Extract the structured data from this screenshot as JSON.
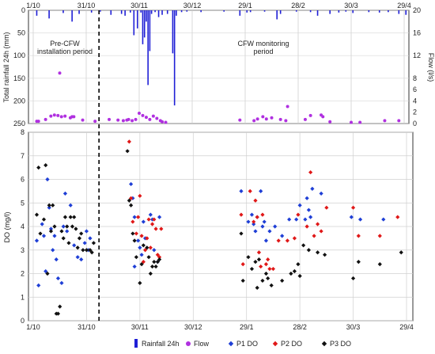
{
  "chart_data": [
    {
      "type": "bar+scatter",
      "panel": "top",
      "x_tick_labels": [
        "1/10",
        "31/10",
        "30/11",
        "30/12",
        "29/1",
        "28/2",
        "30/3",
        "29/4"
      ],
      "xlabel": "",
      "ylabel_left": "Total rainfall 24h (mm)",
      "ylabel_right": "Flow (l/s)",
      "yticks_left": [
        0,
        50,
        100,
        150,
        200,
        250
      ],
      "yticks_right": [
        0,
        2,
        4,
        6,
        8,
        12,
        16,
        20
      ],
      "ylim_left": [
        0,
        250
      ],
      "left_axis_inverted": true,
      "ylim_right": [
        0,
        20
      ],
      "colors": {
        "rainfall": "#1f1fd6",
        "flow": "#b030e0"
      },
      "annotations": [
        "Pre-CFW installation period",
        "CFW monitoring period"
      ],
      "rainfall": [
        {
          "day": 2,
          "mm": 12
        },
        {
          "day": 9,
          "mm": 18
        },
        {
          "day": 17,
          "mm": 6
        },
        {
          "day": 22,
          "mm": 25
        },
        {
          "day": 26,
          "mm": 8
        },
        {
          "day": 33,
          "mm": 5
        },
        {
          "day": 38,
          "mm": 3
        },
        {
          "day": 44,
          "mm": 10
        },
        {
          "day": 50,
          "mm": 8
        },
        {
          "day": 52,
          "mm": 12
        },
        {
          "day": 55,
          "mm": 5
        },
        {
          "day": 57,
          "mm": 55
        },
        {
          "day": 59,
          "mm": 40
        },
        {
          "day": 61,
          "mm": 5
        },
        {
          "day": 62,
          "mm": 75
        },
        {
          "day": 63,
          "mm": 60
        },
        {
          "day": 64,
          "mm": 25
        },
        {
          "day": 65,
          "mm": 165
        },
        {
          "day": 66,
          "mm": 90
        },
        {
          "day": 67,
          "mm": 8
        },
        {
          "day": 69,
          "mm": 4
        },
        {
          "day": 71,
          "mm": 15
        },
        {
          "day": 73,
          "mm": 10
        },
        {
          "day": 76,
          "mm": 8
        },
        {
          "day": 79,
          "mm": 95
        },
        {
          "day": 80,
          "mm": 210
        },
        {
          "day": 81,
          "mm": 12
        },
        {
          "day": 84,
          "mm": 4
        },
        {
          "day": 87,
          "mm": 3
        },
        {
          "day": 95,
          "mm": 4
        },
        {
          "day": 108,
          "mm": 3
        },
        {
          "day": 117,
          "mm": 12
        },
        {
          "day": 121,
          "mm": 5
        },
        {
          "day": 123,
          "mm": 4
        },
        {
          "day": 131,
          "mm": 3
        },
        {
          "day": 138,
          "mm": 20
        },
        {
          "day": 140,
          "mm": 8
        },
        {
          "day": 149,
          "mm": 3
        },
        {
          "day": 157,
          "mm": 4
        },
        {
          "day": 161,
          "mm": 12
        },
        {
          "day": 168,
          "mm": 8
        },
        {
          "day": 173,
          "mm": 5
        },
        {
          "day": 177,
          "mm": 3
        },
        {
          "day": 181,
          "mm": 6
        },
        {
          "day": 190,
          "mm": 4
        },
        {
          "day": 196,
          "mm": 5
        },
        {
          "day": 201,
          "mm": 4
        },
        {
          "day": 207,
          "mm": 8
        },
        {
          "day": 211,
          "mm": 10
        }
      ],
      "flow": [
        {
          "day": 2,
          "ls": 0.2
        },
        {
          "day": 3,
          "ls": 0.2
        },
        {
          "day": 7,
          "ls": 0.5
        },
        {
          "day": 10,
          "ls": 1.1
        },
        {
          "day": 12,
          "ls": 1.3
        },
        {
          "day": 14,
          "ls": 1.2
        },
        {
          "day": 15,
          "ls": 8.7
        },
        {
          "day": 16,
          "ls": 1.0
        },
        {
          "day": 18,
          "ls": 1.1
        },
        {
          "day": 21,
          "ls": 0.8
        },
        {
          "day": 22,
          "ls": 1.0
        },
        {
          "day": 23,
          "ls": 1.0
        },
        {
          "day": 28,
          "ls": 0.4
        },
        {
          "day": 35,
          "ls": 0.2
        },
        {
          "day": 43,
          "ls": 0.5
        },
        {
          "day": 48,
          "ls": 0.4
        },
        {
          "day": 51,
          "ls": 0.3
        },
        {
          "day": 53,
          "ls": 0.4
        },
        {
          "day": 54,
          "ls": 0.5
        },
        {
          "day": 56,
          "ls": 0.3
        },
        {
          "day": 58,
          "ls": 0.5
        },
        {
          "day": 60,
          "ls": 1.6
        },
        {
          "day": 62,
          "ls": 1.2
        },
        {
          "day": 64,
          "ls": 0.9
        },
        {
          "day": 66,
          "ls": 0.5
        },
        {
          "day": 68,
          "ls": 1.1
        },
        {
          "day": 70,
          "ls": 0.7
        },
        {
          "day": 72,
          "ls": 0.3
        },
        {
          "day": 73,
          "ls": 0.1
        },
        {
          "day": 75,
          "ls": 0.0
        },
        {
          "day": 117,
          "ls": 0.4
        },
        {
          "day": 125,
          "ls": 0.3
        },
        {
          "day": 127,
          "ls": 0.6
        },
        {
          "day": 130,
          "ls": 1.0
        },
        {
          "day": 132,
          "ls": 0.6
        },
        {
          "day": 135,
          "ls": 0.8
        },
        {
          "day": 140,
          "ls": 0.5
        },
        {
          "day": 143,
          "ls": 0.3
        },
        {
          "day": 144,
          "ls": 2.8
        },
        {
          "day": 154,
          "ls": 0.5
        },
        {
          "day": 157,
          "ls": 1.2
        },
        {
          "day": 163,
          "ls": 1.3
        },
        {
          "day": 164,
          "ls": 1.0
        },
        {
          "day": 168,
          "ls": 0.1
        },
        {
          "day": 180,
          "ls": 0.0
        },
        {
          "day": 185,
          "ls": 0.0
        },
        {
          "day": 199,
          "ls": 0.3
        },
        {
          "day": 207,
          "ls": 0.3
        }
      ]
    },
    {
      "type": "scatter",
      "panel": "bottom",
      "x_tick_labels": [
        "1/10",
        "31/10",
        "30/11",
        "30/12",
        "29/1",
        "28/2",
        "30/3",
        "29/4"
      ],
      "ylabel": "DO (mg/l)",
      "yticks": [
        0,
        1,
        2,
        3,
        4,
        5,
        6,
        7,
        8
      ],
      "ylim": [
        0,
        8
      ],
      "series": [
        {
          "name": "P1 DO",
          "color": "#1f3fd6",
          "points": [
            [
              2,
              3.4
            ],
            [
              3,
              1.5
            ],
            [
              5,
              4.1
            ],
            [
              6,
              3.6
            ],
            [
              7,
              2.1
            ],
            [
              8,
              6.0
            ],
            [
              9,
              4.8
            ],
            [
              10,
              3.9
            ],
            [
              11,
              3.0
            ],
            [
              12,
              3.6
            ],
            [
              13,
              2.6
            ],
            [
              14,
              1.8
            ],
            [
              16,
              1.6
            ],
            [
              17,
              4.0
            ],
            [
              18,
              5.4
            ],
            [
              19,
              3.8
            ],
            [
              21,
              4.9
            ],
            [
              23,
              3.2
            ],
            [
              25,
              2.7
            ],
            [
              27,
              2.6
            ],
            [
              29,
              3.3
            ],
            [
              30,
              3.8
            ],
            [
              31,
              3.0
            ],
            [
              32,
              3.5
            ],
            [
              55,
              5.8
            ],
            [
              56,
              5.2
            ],
            [
              57,
              2.3
            ],
            [
              57,
              4.4
            ],
            [
              59,
              3.4
            ],
            [
              60,
              3.1
            ],
            [
              61,
              2.8
            ],
            [
              62,
              4.2
            ],
            [
              63,
              3.5
            ],
            [
              66,
              4.5
            ],
            [
              67,
              4.3
            ],
            [
              68,
              3.0
            ],
            [
              70,
              2.5
            ],
            [
              71,
              4.4
            ],
            [
              117,
              5.5
            ],
            [
              121,
              4.2
            ],
            [
              123,
              4.5
            ],
            [
              124,
              4.1
            ],
            [
              125,
              3.8
            ],
            [
              126,
              4.4
            ],
            [
              128,
              5.5
            ],
            [
              129,
              4.0
            ],
            [
              130,
              4.2
            ],
            [
              131,
              3.4
            ],
            [
              133,
              3.8
            ],
            [
              136,
              4.0
            ],
            [
              140,
              3.6
            ],
            [
              144,
              4.3
            ],
            [
              148,
              4.3
            ],
            [
              150,
              4.9
            ],
            [
              153,
              4.3
            ],
            [
              154,
              5.2
            ],
            [
              155,
              4.7
            ],
            [
              156,
              4.4
            ],
            [
              157,
              5.6
            ],
            [
              162,
              5.4
            ],
            [
              179,
              4.4
            ],
            [
              184,
              4.3
            ],
            [
              197,
              4.3
            ]
          ]
        },
        {
          "name": "P2 DO",
          "color": "#e01818",
          "points": [
            [
              54,
              7.6
            ],
            [
              55,
              5.2
            ],
            [
              56,
              4.2
            ],
            [
              58,
              3.7
            ],
            [
              59,
              4.4
            ],
            [
              60,
              5.3
            ],
            [
              61,
              3.6
            ],
            [
              62,
              2.5
            ],
            [
              63,
              3.0
            ],
            [
              64,
              3.5
            ],
            [
              65,
              4.3
            ],
            [
              66,
              3.1
            ],
            [
              67,
              4.1
            ],
            [
              68,
              4.3
            ],
            [
              69,
              3.9
            ],
            [
              70,
              2.8
            ],
            [
              71,
              2.7
            ],
            [
              72,
              3.9
            ],
            [
              117,
              4.5
            ],
            [
              118,
              2.4
            ],
            [
              122,
              5.5
            ],
            [
              124,
              4.2
            ],
            [
              125,
              5.1
            ],
            [
              126,
              4.4
            ],
            [
              127,
              2.9
            ],
            [
              128,
              2.3
            ],
            [
              129,
              4.5
            ],
            [
              131,
              2.4
            ],
            [
              132,
              2.6
            ],
            [
              133,
              2.2
            ],
            [
              135,
              2.2
            ],
            [
              138,
              3.4
            ],
            [
              143,
              3.4
            ],
            [
              147,
              3.5
            ],
            [
              149,
              4.5
            ],
            [
              154,
              4.0
            ],
            [
              156,
              6.3
            ],
            [
              158,
              3.6
            ],
            [
              160,
              4.1
            ],
            [
              162,
              3.8
            ],
            [
              165,
              4.8
            ],
            [
              180,
              4.8
            ],
            [
              183,
              3.6
            ],
            [
              195,
              3.6
            ],
            [
              205,
              4.4
            ]
          ]
        },
        {
          "name": "P3 DO",
          "color": "#111111",
          "points": [
            [
              2,
              4.5
            ],
            [
              3,
              6.5
            ],
            [
              4,
              3.7
            ],
            [
              6,
              4.3
            ],
            [
              7,
              6.6
            ],
            [
              8,
              2.0
            ],
            [
              9,
              4.9
            ],
            [
              10,
              3.8
            ],
            [
              11,
              4.9
            ],
            [
              12,
              4.0
            ],
            [
              13,
              0.3
            ],
            [
              14,
              0.3
            ],
            [
              15,
              0.6
            ],
            [
              16,
              3.8
            ],
            [
              17,
              3.5
            ],
            [
              18,
              4.4
            ],
            [
              19,
              4.0
            ],
            [
              20,
              3.3
            ],
            [
              21,
              4.4
            ],
            [
              22,
              4.0
            ],
            [
              23,
              4.4
            ],
            [
              24,
              3.9
            ],
            [
              25,
              3.1
            ],
            [
              26,
              3.5
            ],
            [
              27,
              3.7
            ],
            [
              28,
              3.0
            ],
            [
              30,
              3.0
            ],
            [
              32,
              3.0
            ],
            [
              33,
              2.9
            ],
            [
              34,
              3.3
            ],
            [
              53,
              7.2
            ],
            [
              54,
              5.1
            ],
            [
              55,
              4.9
            ],
            [
              56,
              3.7
            ],
            [
              57,
              3.4
            ],
            [
              58,
              2.7
            ],
            [
              60,
              1.6
            ],
            [
              61,
              2.4
            ],
            [
              62,
              3.2
            ],
            [
              64,
              3.1
            ],
            [
              65,
              2.7
            ],
            [
              66,
              2.0
            ],
            [
              67,
              2.3
            ],
            [
              68,
              2.5
            ],
            [
              69,
              2.3
            ],
            [
              70,
              2.5
            ],
            [
              71,
              2.6
            ],
            [
              117,
              3.7
            ],
            [
              118,
              1.7
            ],
            [
              121,
              2.7
            ],
            [
              123,
              2.2
            ],
            [
              125,
              2.5
            ],
            [
              126,
              1.4
            ],
            [
              127,
              2.6
            ],
            [
              129,
              1.7
            ],
            [
              131,
              2.0
            ],
            [
              132,
              1.8
            ],
            [
              134,
              1.5
            ],
            [
              140,
              1.7
            ],
            [
              145,
              2.0
            ],
            [
              147,
              2.1
            ],
            [
              149,
              2.4
            ],
            [
              150,
              1.9
            ],
            [
              152,
              3.2
            ],
            [
              155,
              3.0
            ],
            [
              160,
              2.9
            ],
            [
              164,
              2.8
            ],
            [
              180,
              1.8
            ],
            [
              183,
              2.5
            ],
            [
              195,
              2.4
            ],
            [
              207,
              2.9
            ]
          ]
        }
      ]
    }
  ],
  "legend": {
    "items": [
      {
        "label": "Rainfall 24h",
        "color": "#1f1fd6",
        "marker": "bar"
      },
      {
        "label": "Flow",
        "color": "#b030e0",
        "marker": "dot"
      },
      {
        "label": "P1 DO",
        "color": "#1f3fd6",
        "marker": "diamond"
      },
      {
        "label": "P2 DO",
        "color": "#e01818",
        "marker": "diamond"
      },
      {
        "label": "P3 DO",
        "color": "#111111",
        "marker": "diamond"
      }
    ]
  }
}
